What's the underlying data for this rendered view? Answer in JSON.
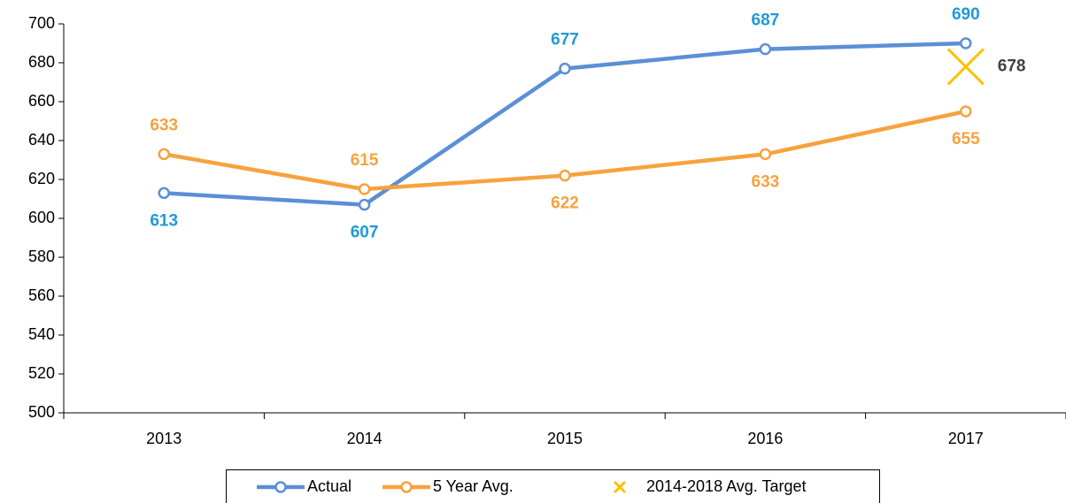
{
  "chart_data": {
    "type": "line",
    "categories": [
      "2013",
      "2014",
      "2015",
      "2016",
      "2017"
    ],
    "series": [
      {
        "name": "Actual",
        "color": "#5b8fd6",
        "label_color": "#1f9ad6",
        "marker": "circle",
        "values": [
          613,
          607,
          677,
          687,
          690
        ]
      },
      {
        "name": "5 Year Avg.",
        "color": "#f7a23e",
        "label_color": "#f7a23e",
        "marker": "circle",
        "values": [
          633,
          615,
          622,
          633,
          655
        ]
      },
      {
        "name": "2014-2018 Avg. Target",
        "color": "#ffc000",
        "label_color": "#404040",
        "marker": "x",
        "values": [
          null,
          null,
          null,
          null,
          678
        ]
      }
    ],
    "ylim": [
      500,
      700
    ],
    "yticks": [
      500,
      520,
      540,
      560,
      580,
      600,
      620,
      640,
      660,
      680,
      700
    ],
    "legend": "bottom"
  }
}
